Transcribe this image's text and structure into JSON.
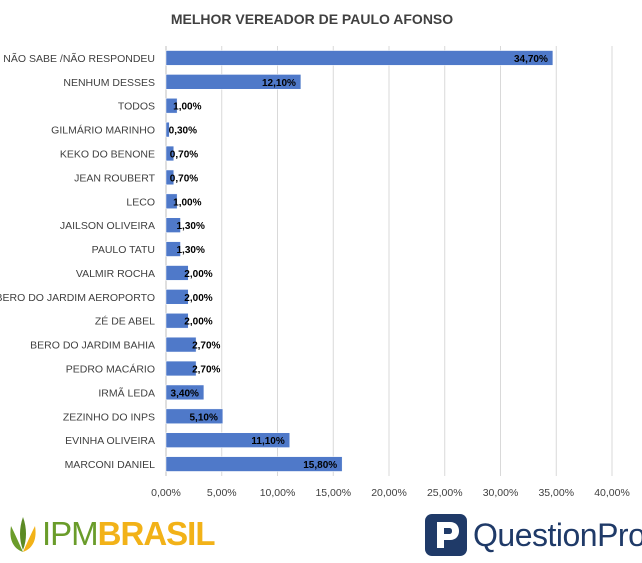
{
  "chart_data": {
    "type": "bar",
    "orientation": "horizontal",
    "title": "MELHOR VEREADOR DE PAULO AFONSO",
    "categories": [
      "NÃO SABE /NÃO RESPONDEU",
      "NENHUM DESSES",
      "TODOS",
      "GILMÁRIO MARINHO",
      "KEKO DO BENONE",
      "JEAN ROUBERT",
      "LECO",
      "JAILSON OLIVEIRA",
      "PAULO TATU",
      "VALMIR ROCHA",
      "BERO DO JARDIM AEROPORTO",
      "ZÉ DE ABEL",
      "BERO DO JARDIM BAHIA",
      "PEDRO MACÁRIO",
      "IRMÃ LEDA",
      "ZEZINHO DO INPS",
      "EVINHA OLIVEIRA",
      "MARCONI DANIEL"
    ],
    "values": [
      34.7,
      12.1,
      1.0,
      0.3,
      0.7,
      0.7,
      1.0,
      1.3,
      1.3,
      2.0,
      2.0,
      2.0,
      2.7,
      2.7,
      3.4,
      5.1,
      11.1,
      15.8
    ],
    "data_labels": [
      "34,70%",
      "12,10%",
      "1,00%",
      "0,30%",
      "0,70%",
      "0,70%",
      "1,00%",
      "1,30%",
      "1,30%",
      "2,00%",
      "2,00%",
      "2,00%",
      "2,70%",
      "2,70%",
      "3,40%",
      "5,10%",
      "11,10%",
      "15,80%"
    ],
    "xlim": [
      0,
      40
    ],
    "x_ticks": [
      "0,00%",
      "5,00%",
      "10,00%",
      "15,00%",
      "20,00%",
      "25,00%",
      "30,00%",
      "35,00%",
      "40,00%"
    ],
    "xlabel": "",
    "ylabel": "",
    "grid": true,
    "bar_color": "#4f79c9"
  },
  "logos": {
    "ipm": {
      "part1": "IPM",
      "part2": "BRASIL"
    },
    "questionpro": "QuestionPro"
  }
}
